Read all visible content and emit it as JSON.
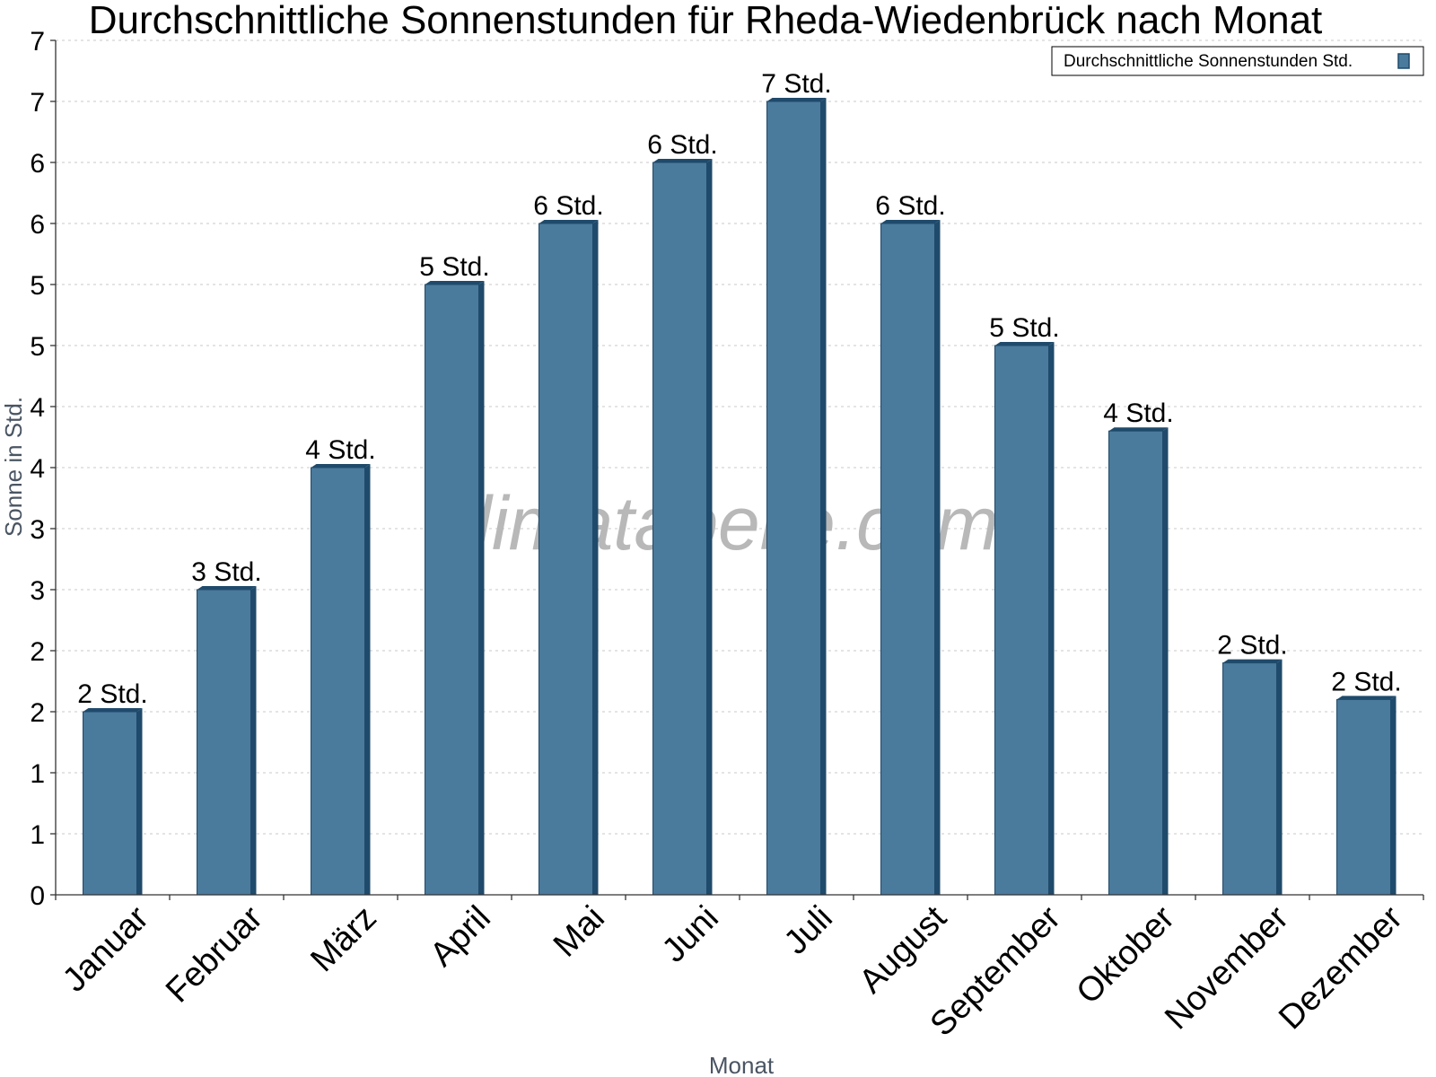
{
  "chart_data": {
    "type": "bar",
    "title": "Durchschnittliche Sonnenstunden für Rheda-Wiedenbrück nach Monat",
    "xlabel": "Monat",
    "ylabel": "Sonne in Std.",
    "categories": [
      "Januar",
      "Februar",
      "März",
      "April",
      "Mai",
      "Juni",
      "Juli",
      "August",
      "September",
      "Oktober",
      "November",
      "Dezember"
    ],
    "series": [
      {
        "name": "Durchschnittliche Sonnenstunden Std.",
        "values": [
          1.5,
          2.5,
          3.5,
          5.0,
          5.5,
          6.0,
          6.5,
          5.5,
          4.5,
          3.8,
          1.9,
          1.6
        ],
        "data_labels": [
          "2 Std.",
          "3 Std.",
          "4 Std.",
          "5 Std.",
          "6 Std.",
          "6 Std.",
          "7 Std.",
          "6 Std.",
          "5 Std.",
          "4 Std.",
          "2 Std.",
          "2 Std."
        ]
      }
    ],
    "ylim": [
      0,
      7
    ],
    "yticks": [
      0,
      0.5,
      1,
      1.5,
      2,
      2.5,
      3,
      3.5,
      4,
      4.5,
      5,
      5.5,
      6,
      6.5,
      7
    ],
    "ytick_labels": [
      "0",
      "1",
      "1",
      "2",
      "2",
      "3",
      "3",
      "4",
      "4",
      "5",
      "5",
      "6",
      "6",
      "7",
      "7"
    ],
    "grid": true,
    "legend_position": "top-right",
    "bar_color": "#4a7a9c",
    "bar_side_color": "#1f4a6b",
    "watermark": "klimatabelle.com"
  }
}
